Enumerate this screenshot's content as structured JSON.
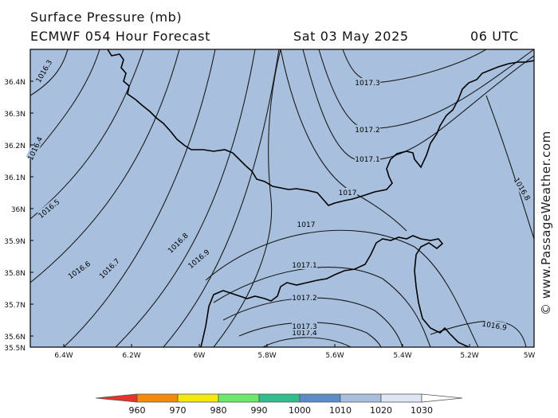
{
  "header": {
    "title": "Surface Pressure (mb)",
    "model": "ECMWF 054 Hour Forecast",
    "date": "Sat 03 May 2025",
    "time": "06 UTC"
  },
  "credit": "© www.PassageWeather.com",
  "map": {
    "longitude_labels": [
      "6.4W",
      "6.2W",
      "6W",
      "5.8W",
      "5.6W",
      "5.4W",
      "5.2W",
      "5W"
    ],
    "latitude_labels": [
      "36.4N",
      "36.3N",
      "36.2N",
      "36.1N",
      "36N",
      "35.9N",
      "35.8N",
      "35.7N",
      "35.6N",
      "35.5N"
    ],
    "isobar_labels": [
      "1016.3",
      "1016.4",
      "1016.5",
      "1016.6",
      "1016.7",
      "1016.8",
      "1016.9",
      "1017",
      "1017.1",
      "1017.2",
      "1017.3",
      "1017.4",
      "1016.8",
      "1016.9",
      "1017",
      "1017.1",
      "1017.2",
      "1017.3"
    ],
    "colors": {
      "sea": "#a8c0de",
      "land": "#a8c0de",
      "coast": "#000000",
      "isobar": "#1a1a1a"
    }
  },
  "legend": {
    "ticks": [
      "960",
      "970",
      "980",
      "990",
      "1000",
      "1010",
      "1020",
      "1030"
    ],
    "colors": [
      "#e8332a",
      "#f28a0c",
      "#f5e80c",
      "#6ee86a",
      "#2fbf8f",
      "#5b8cc9",
      "#a8c0de",
      "#dde6f2",
      "#ffffff"
    ]
  }
}
